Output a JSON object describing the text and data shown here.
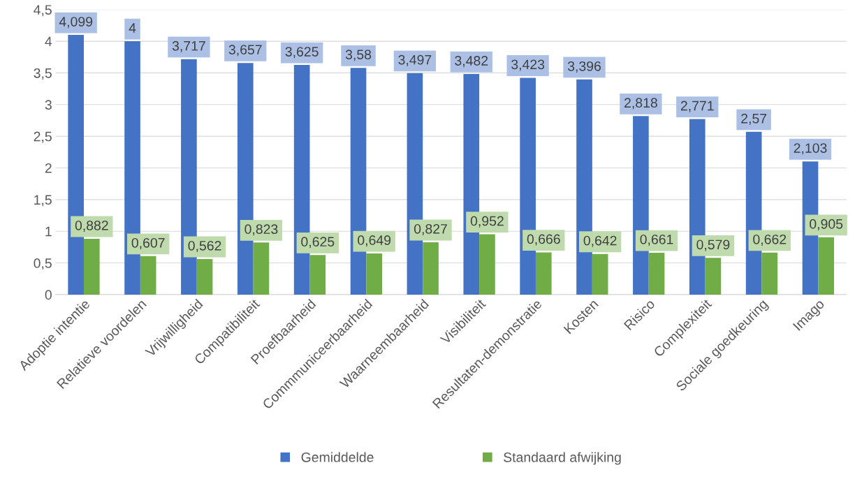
{
  "chart_data": {
    "type": "bar",
    "categories": [
      "Adoptie intentie",
      "Relatieve voordelen",
      "Vrijwilligheid",
      "Compatibiliteit",
      "Proefbaarheid",
      "Commmuniceerbaarheid",
      "Waarneembaarheid",
      "Visibiliteit",
      "Resultaten-demonstratie",
      "Kosten",
      "Risico",
      "Complexiteit",
      "Sociale goedkeuring",
      "Imago"
    ],
    "series": [
      {
        "name": "Gemiddelde",
        "color": "#4472c4",
        "values": [
          4.099,
          4,
          3.717,
          3.657,
          3.625,
          3.58,
          3.497,
          3.482,
          3.423,
          3.396,
          2.818,
          2.771,
          2.57,
          2.103
        ],
        "value_labels": [
          "4,099",
          "4",
          "3,717",
          "3,657",
          "3,625",
          "3,58",
          "3,497",
          "3,482",
          "3,423",
          "3,396",
          "2,818",
          "2,771",
          "2,57",
          "2,103"
        ]
      },
      {
        "name": "Standaard afwijking",
        "color": "#70ad47",
        "values": [
          0.882,
          0.607,
          0.562,
          0.823,
          0.625,
          0.649,
          0.827,
          0.952,
          0.666,
          0.642,
          0.661,
          0.579,
          0.662,
          0.905
        ],
        "value_labels": [
          "0,882",
          "0,607",
          "0,562",
          "0,823",
          "0,625",
          "0,649",
          "0,827",
          "0,952",
          "0,666",
          "0,642",
          "0,661",
          "0,579",
          "0,662",
          "0,905"
        ]
      }
    ],
    "ylim": [
      0,
      4.5
    ],
    "yticks": [
      0,
      {
        "value": 0.5,
        "label": "0,5"
      },
      1,
      {
        "value": 1.5,
        "label": "1,5"
      },
      2,
      {
        "value": 2.5,
        "label": "2,5"
      },
      3,
      {
        "value": 3.5,
        "label": "3,5"
      },
      4,
      {
        "value": 4.5,
        "label": "4,5"
      }
    ],
    "grid": "y",
    "legend": "bottom"
  }
}
